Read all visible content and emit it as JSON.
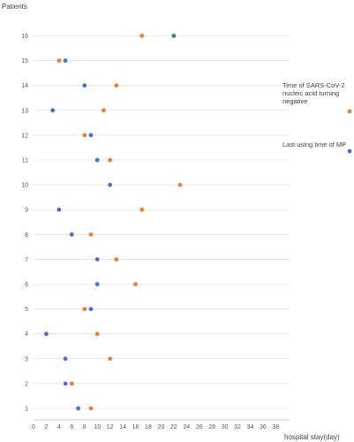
{
  "chart_data": {
    "type": "scatter",
    "ylabel": "Patients",
    "xlabel": "hospital  stay(day)",
    "xlim": [
      0,
      39
    ],
    "ylim": [
      1,
      16
    ],
    "x_ticks": [
      0,
      2,
      4,
      6,
      8,
      10,
      12,
      14,
      16,
      18,
      20,
      22,
      24,
      26,
      28,
      30,
      32,
      34,
      36,
      38
    ],
    "y_ticks": [
      1,
      2,
      3,
      4,
      5,
      6,
      7,
      8,
      9,
      10,
      11,
      12,
      13,
      14,
      15,
      16
    ],
    "grid": "horizontal",
    "series": [
      {
        "name": "Last using time of MP",
        "color": "#4472C4",
        "points": [
          {
            "patient": 1,
            "day": 7
          },
          {
            "patient": 2,
            "day": 5
          },
          {
            "patient": 3,
            "day": 5
          },
          {
            "patient": 4,
            "day": 2
          },
          {
            "patient": 5,
            "day": 9
          },
          {
            "patient": 6,
            "day": 10
          },
          {
            "patient": 7,
            "day": 10
          },
          {
            "patient": 8,
            "day": 6
          },
          {
            "patient": 9,
            "day": 4
          },
          {
            "patient": 10,
            "day": 12
          },
          {
            "patient": 11,
            "day": 10
          },
          {
            "patient": 12,
            "day": 9
          },
          {
            "patient": 13,
            "day": 3
          },
          {
            "patient": 14,
            "day": 8
          },
          {
            "patient": 15,
            "day": 5
          },
          {
            "patient": 16,
            "day": 22
          }
        ]
      },
      {
        "name": "Time of SARS-CoV-2 nucleic acid turning negative",
        "name_lines": [
          "Time of SARS-CoV-2",
          "nucleic acid turning",
          "negative"
        ],
        "color": "#ED7D31",
        "points": [
          {
            "patient": 1,
            "day": 9
          },
          {
            "patient": 2,
            "day": 6
          },
          {
            "patient": 3,
            "day": 12
          },
          {
            "patient": 4,
            "day": 10
          },
          {
            "patient": 5,
            "day": 8
          },
          {
            "patient": 6,
            "day": 16
          },
          {
            "patient": 7,
            "day": 13
          },
          {
            "patient": 8,
            "day": 9
          },
          {
            "patient": 9,
            "day": 17
          },
          {
            "patient": 10,
            "day": 23
          },
          {
            "patient": 11,
            "day": 12
          },
          {
            "patient": 12,
            "day": 8
          },
          {
            "patient": 13,
            "day": 11
          },
          {
            "patient": 14,
            "day": 13
          },
          {
            "patient": 15,
            "day": 4
          },
          {
            "patient": 16,
            "day": 17
          }
        ]
      }
    ],
    "legend": "right"
  }
}
